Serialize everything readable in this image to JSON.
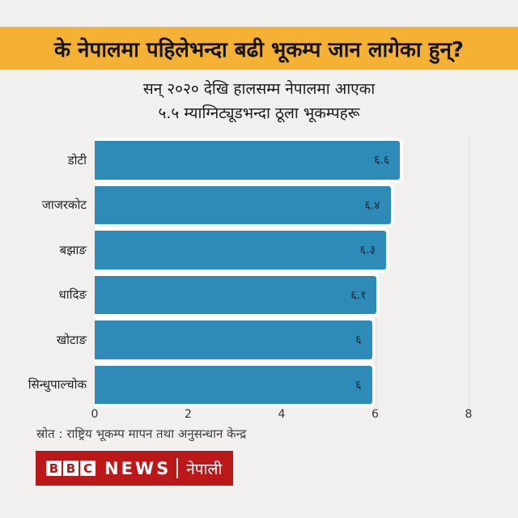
{
  "banner": {
    "headline": "के नेपालमा पहिलेभन्दा बढी भूकम्प जान लागेका हुन्?",
    "bg_color": "#F5B133"
  },
  "title": {
    "line1": "सन् २०२० देखि हालसम्म नेपालमा आएका",
    "line2": "५.५ म्याग्निट्यूडभन्दा ठूला भूकम्पहरू"
  },
  "chart_data": {
    "type": "bar",
    "orientation": "horizontal",
    "title": "सन् २०२० देखि हालसम्म नेपालमा आएका ५.५ म्याग्निट्यूडभन्दा ठूला भूकम्पहरू",
    "categories": [
      "डोटी",
      "जाजरकोट",
      "बझाङ",
      "धादिङ",
      "खोटाङ",
      "सिन्धुपाल्चोक"
    ],
    "values": [
      6.6,
      6.4,
      6.3,
      6.1,
      6,
      6
    ],
    "value_labels": [
      "६.६",
      "६.४",
      "६.३",
      "६.१",
      "६",
      "६"
    ],
    "xlim": [
      0,
      8
    ],
    "x_ticks": [
      "0",
      "2",
      "4",
      "6",
      "8"
    ],
    "grid": "vertical light gridlines at 2,4,6,8",
    "legend": "none",
    "bar_color": "#2E8BB8",
    "value_label_color": "#0e2433"
  },
  "source": {
    "text": "स्रोत : राष्ट्रिय भूकम्प मापन तथा अनुसन्धान केन्द्र"
  },
  "footer": {
    "blocks": [
      "B",
      "B",
      "C"
    ],
    "news": "NEWS",
    "service": "नेपाली",
    "brand_color": "#BB1919"
  }
}
